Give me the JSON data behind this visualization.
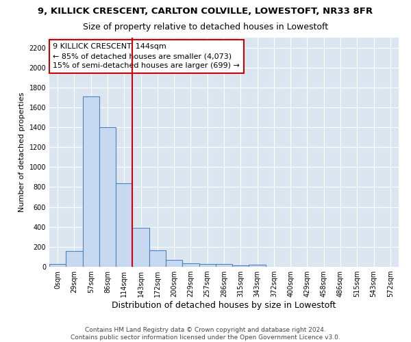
{
  "title": "9, KILLICK CRESCENT, CARLTON COLVILLE, LOWESTOFT, NR33 8FR",
  "subtitle": "Size of property relative to detached houses in Lowestoft",
  "xlabel": "Distribution of detached houses by size in Lowestoft",
  "ylabel": "Number of detached properties",
  "footnote1": "Contains HM Land Registry data © Crown copyright and database right 2024.",
  "footnote2": "Contains public sector information licensed under the Open Government Licence v3.0.",
  "bar_labels": [
    "0sqm",
    "29sqm",
    "57sqm",
    "86sqm",
    "114sqm",
    "143sqm",
    "172sqm",
    "200sqm",
    "229sqm",
    "257sqm",
    "286sqm",
    "315sqm",
    "343sqm",
    "372sqm",
    "400sqm",
    "429sqm",
    "458sqm",
    "486sqm",
    "515sqm",
    "543sqm",
    "572sqm"
  ],
  "bar_values": [
    25,
    155,
    1710,
    1400,
    840,
    390,
    165,
    70,
    35,
    30,
    30,
    15,
    20,
    0,
    0,
    0,
    0,
    0,
    0,
    0,
    0
  ],
  "bar_color": "#c6d9f1",
  "bar_edge_color": "#4f81bd",
  "bar_edge_width": 0.8,
  "vline_color": "#cc0000",
  "vline_x_index": 5,
  "annotation_line0": "9 KILLICK CRESCENT: 144sqm",
  "annotation_line1": "← 85% of detached houses are smaller (4,073)",
  "annotation_line2": "15% of semi-detached houses are larger (699) →",
  "annotation_box_color": "#ffffff",
  "annotation_box_edge": "#cc0000",
  "ylim": [
    0,
    2300
  ],
  "yticks": [
    0,
    200,
    400,
    600,
    800,
    1000,
    1200,
    1400,
    1600,
    1800,
    2000,
    2200
  ],
  "background_color": "#dce6f1",
  "grid_color": "#ffffff",
  "fig_bg_color": "#ffffff",
  "title_fontsize": 9.5,
  "subtitle_fontsize": 9,
  "xlabel_fontsize": 9,
  "ylabel_fontsize": 8,
  "tick_fontsize": 7,
  "annotation_fontsize": 8,
  "footnote_fontsize": 6.5
}
